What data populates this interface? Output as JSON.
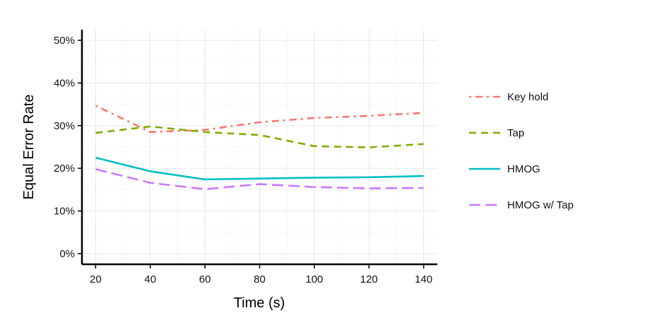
{
  "chart_data": {
    "type": "line",
    "title": "",
    "xlabel": "Time (s)",
    "ylabel": "Equal Error Rate",
    "x": [
      20,
      40,
      60,
      80,
      100,
      120,
      140
    ],
    "x_ticks": [
      "20",
      "40",
      "60",
      "80",
      "100",
      "120",
      "140"
    ],
    "xlim": [
      15,
      145
    ],
    "y_ticks": [
      "0%",
      "10%",
      "20%",
      "30%",
      "40%",
      "50%"
    ],
    "ylim": [
      -2.5,
      52.5
    ],
    "grid": true,
    "legend_position": "right",
    "series": [
      {
        "name": "Key hold",
        "values": [
          34.7,
          28.5,
          29.0,
          30.8,
          31.8,
          32.3,
          33.0
        ],
        "color": "#F8766D",
        "dash": "dot-dash"
      },
      {
        "name": "Tap",
        "values": [
          28.3,
          29.8,
          28.5,
          27.8,
          25.2,
          24.9,
          25.7
        ],
        "color": "#7CAE00",
        "dash": "dashed"
      },
      {
        "name": "HMOG",
        "values": [
          22.5,
          19.3,
          17.4,
          17.6,
          17.8,
          17.9,
          18.2
        ],
        "color": "#00BFC4",
        "dash": "solid"
      },
      {
        "name": "HMOG w/ Tap",
        "values": [
          19.8,
          16.6,
          15.1,
          16.3,
          15.6,
          15.3,
          15.4
        ],
        "color": "#C77CFF",
        "dash": "long-dash"
      }
    ]
  }
}
